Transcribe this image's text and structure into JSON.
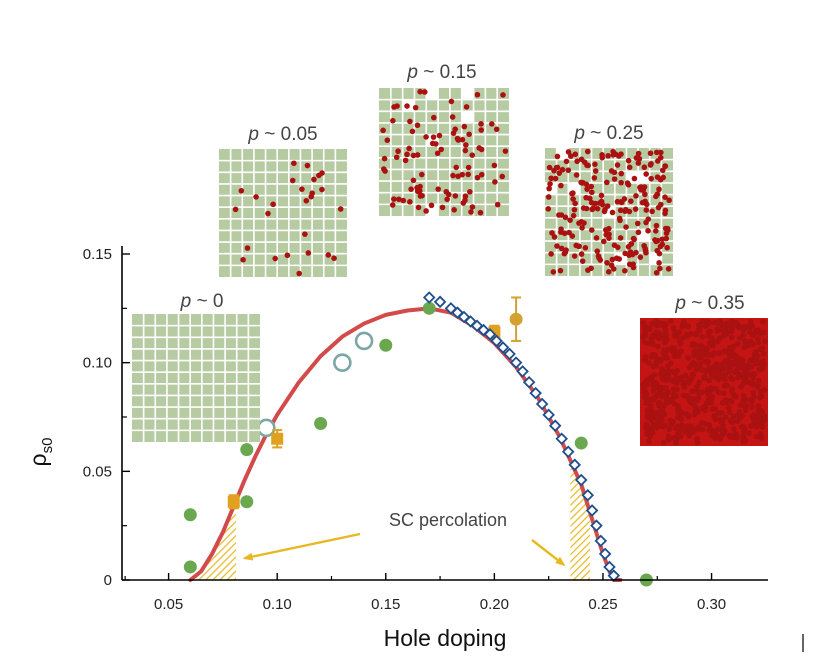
{
  "chart_data": {
    "type": "scatter",
    "xlabel": "Hole doping",
    "ylabel": "ρ",
    "ylabel_sub": "s0",
    "xlim": [
      0.0,
      0.32
    ],
    "ylim": [
      0.0,
      0.15
    ],
    "x_ticks": [
      0.05,
      0.1,
      0.15,
      0.2,
      0.25,
      0.3
    ],
    "x_tick_labels": [
      "0.05",
      "0.10",
      "0.15",
      "0.20",
      "0.25",
      "0.30"
    ],
    "y_ticks": [
      0,
      0.05,
      0.1,
      0.15
    ],
    "y_tick_labels": [
      "0",
      "0.05",
      "0.10",
      "0.15"
    ],
    "grid": false,
    "series": [
      {
        "marker": "filled-circle",
        "color": "#6aa84f",
        "points": [
          [
            0.06,
            0.006
          ],
          [
            0.06,
            0.03
          ],
          [
            0.086,
            0.036
          ],
          [
            0.086,
            0.06
          ],
          [
            0.12,
            0.072
          ],
          [
            0.15,
            0.108
          ],
          [
            0.17,
            0.125
          ],
          [
            0.24,
            0.063
          ],
          [
            0.27,
            0.0
          ]
        ]
      },
      {
        "marker": "open-circle",
        "color": "#7aa6a6",
        "points": [
          [
            0.095,
            0.07
          ],
          [
            0.13,
            0.1
          ],
          [
            0.14,
            0.11
          ]
        ]
      },
      {
        "marker": "filled-square-errorbar",
        "color": "#e0a020",
        "points": [
          [
            0.08,
            0.036,
            0.003
          ],
          [
            0.1,
            0.065,
            0.004
          ],
          [
            0.2,
            0.114,
            0.003
          ]
        ]
      },
      {
        "marker": "filled-circle-errorbar",
        "color": "#d4a030",
        "points": [
          [
            0.21,
            0.12,
            0.01
          ]
        ]
      },
      {
        "marker": "open-diamond",
        "color": "#1f4e8c",
        "points": [
          [
            0.17,
            0.13
          ],
          [
            0.175,
            0.128
          ],
          [
            0.18,
            0.125
          ],
          [
            0.183,
            0.123
          ],
          [
            0.186,
            0.121
          ],
          [
            0.189,
            0.119
          ],
          [
            0.192,
            0.117
          ],
          [
            0.195,
            0.115
          ],
          [
            0.198,
            0.113
          ],
          [
            0.201,
            0.11
          ],
          [
            0.204,
            0.107
          ],
          [
            0.207,
            0.104
          ],
          [
            0.21,
            0.1
          ],
          [
            0.213,
            0.096
          ],
          [
            0.216,
            0.091
          ],
          [
            0.219,
            0.086
          ],
          [
            0.222,
            0.081
          ],
          [
            0.225,
            0.076
          ],
          [
            0.228,
            0.071
          ],
          [
            0.231,
            0.065
          ],
          [
            0.234,
            0.059
          ],
          [
            0.237,
            0.053
          ],
          [
            0.24,
            0.046
          ],
          [
            0.243,
            0.039
          ],
          [
            0.245,
            0.032
          ],
          [
            0.247,
            0.025
          ],
          [
            0.249,
            0.018
          ],
          [
            0.251,
            0.012
          ],
          [
            0.253,
            0.006
          ],
          [
            0.255,
            0.002
          ]
        ]
      }
    ],
    "curve": {
      "color": "#d24a4a",
      "points": [
        [
          0.06,
          0.0
        ],
        [
          0.065,
          0.004
        ],
        [
          0.07,
          0.012
        ],
        [
          0.075,
          0.022
        ],
        [
          0.08,
          0.034
        ],
        [
          0.085,
          0.046
        ],
        [
          0.09,
          0.057
        ],
        [
          0.095,
          0.067
        ],
        [
          0.1,
          0.076
        ],
        [
          0.11,
          0.091
        ],
        [
          0.12,
          0.103
        ],
        [
          0.13,
          0.112
        ],
        [
          0.14,
          0.118
        ],
        [
          0.15,
          0.122
        ],
        [
          0.16,
          0.124
        ],
        [
          0.17,
          0.125
        ],
        [
          0.18,
          0.123
        ],
        [
          0.19,
          0.117
        ],
        [
          0.2,
          0.109
        ],
        [
          0.21,
          0.098
        ],
        [
          0.22,
          0.084
        ],
        [
          0.23,
          0.066
        ],
        [
          0.24,
          0.044
        ],
        [
          0.245,
          0.028
        ],
        [
          0.25,
          0.012
        ],
        [
          0.253,
          0.004
        ],
        [
          0.255,
          0.0
        ],
        [
          0.258,
          0.0
        ]
      ]
    },
    "hatched_regions": [
      {
        "x_from": 0.06,
        "x_to": 0.081,
        "color": "#e8b820"
      },
      {
        "x_from": 0.235,
        "x_to": 0.244,
        "color": "#e8b820"
      }
    ],
    "annotation": {
      "text": "SC percolation",
      "arrow_color": "#e8b820",
      "arrow_targets": [
        [
          0.085,
          0.01
        ],
        [
          0.232,
          0.007
        ]
      ]
    },
    "insets": [
      {
        "label_var": "p",
        "label_value": "~ 0",
        "doping": 0.0,
        "dot_count": 0
      },
      {
        "label_var": "p",
        "label_value": "~ 0.05",
        "doping": 0.05,
        "dot_count": 26
      },
      {
        "label_var": "p",
        "label_value": "~ 0.15",
        "doping": 0.15,
        "dot_count": 95,
        "voids": true
      },
      {
        "label_var": "p",
        "label_value": "~ 0.25",
        "doping": 0.25,
        "dot_count": 230,
        "voids": true
      },
      {
        "label_var": "p",
        "label_value": "~ 0.35",
        "doping": 0.35,
        "dot_count": 650
      }
    ],
    "inset_colors": {
      "tile": "#b7cba3",
      "line": "#ffffff",
      "dot": "#aa1111"
    }
  }
}
